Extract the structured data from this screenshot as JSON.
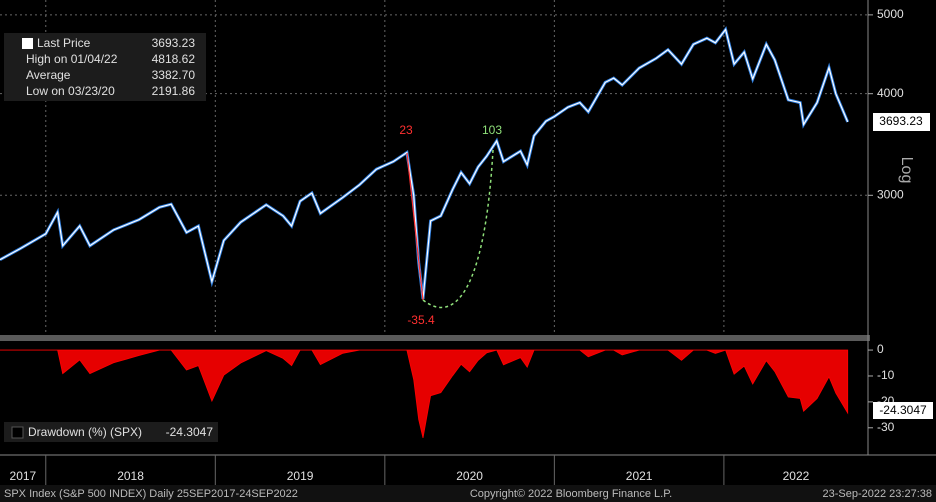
{
  "chart_data": [
    {
      "type": "line",
      "scale": "log",
      "x": [
        2017.73,
        2017.85,
        2018.0,
        2018.07,
        2018.1,
        2018.2,
        2018.26,
        2018.4,
        2018.55,
        2018.67,
        2018.74,
        2018.83,
        2018.9,
        2018.98,
        2019.05,
        2019.15,
        2019.3,
        2019.4,
        2019.45,
        2019.5,
        2019.57,
        2019.62,
        2019.75,
        2019.85,
        2019.95,
        2020.05,
        2020.13,
        2020.17,
        2020.2,
        2020.225,
        2020.27,
        2020.33,
        2020.4,
        2020.45,
        2020.5,
        2020.55,
        2020.6,
        2020.66,
        2020.7,
        2020.8,
        2020.84,
        2020.88,
        2020.95,
        2021.0,
        2021.08,
        2021.15,
        2021.2,
        2021.3,
        2021.35,
        2021.4,
        2021.5,
        2021.6,
        2021.67,
        2021.75,
        2021.82,
        2021.9,
        2021.95,
        2022.01,
        2022.06,
        2022.12,
        2022.17,
        2022.25,
        2022.3,
        2022.38,
        2022.45,
        2022.47,
        2022.55,
        2022.62,
        2022.66,
        2022.73
      ],
      "series": [
        {
          "name": "Last Price",
          "color": "#ffffff",
          "edge_color": "#2f7fe0",
          "values": [
            2500,
            2580,
            2690,
            2860,
            2600,
            2750,
            2600,
            2720,
            2800,
            2900,
            2925,
            2700,
            2750,
            2350,
            2640,
            2780,
            2920,
            2830,
            2750,
            2950,
            3020,
            2850,
            2980,
            3090,
            3230,
            3300,
            3386,
            3000,
            2480,
            2237,
            2790,
            2830,
            3050,
            3200,
            3100,
            3250,
            3350,
            3500,
            3300,
            3400,
            3270,
            3550,
            3700,
            3750,
            3850,
            3900,
            3800,
            4130,
            4180,
            4100,
            4300,
            4420,
            4530,
            4350,
            4600,
            4680,
            4620,
            4797,
            4350,
            4500,
            4170,
            4600,
            4400,
            3930,
            3900,
            3666,
            3900,
            4305,
            4000,
            3693.23
          ]
        }
      ],
      "stats": [
        {
          "name": "High on 01/04/22",
          "value": 4818.62
        },
        {
          "name": "Average",
          "value": 3382.7,
          "value_label": "3382.70"
        },
        {
          "name": "Low on 03/23/20",
          "value": 2191.86
        }
      ],
      "annotations": [
        {
          "text": "23",
          "color": "#ff3030"
        },
        {
          "text": "103",
          "color": "#8fe07a"
        },
        {
          "text": "-35.4",
          "color": "#ff3030"
        }
      ],
      "axis_label": "Log",
      "xlim": [
        2017.73,
        2022.85
      ],
      "xticks": [
        {
          "value": 2017,
          "label": "2017"
        },
        {
          "value": 2018,
          "label": "2018"
        },
        {
          "value": 2019,
          "label": "2019"
        },
        {
          "value": 2020,
          "label": "2020"
        },
        {
          "value": 2021,
          "label": "2021"
        },
        {
          "value": 2022,
          "label": "2022"
        }
      ],
      "ylim": [
        2020,
        5215
      ],
      "yticks": [
        3000,
        4000,
        5000
      ],
      "grid": true
    },
    {
      "type": "area",
      "x": [
        2017.73,
        2017.85,
        2018.0,
        2018.07,
        2018.1,
        2018.2,
        2018.26,
        2018.4,
        2018.55,
        2018.67,
        2018.74,
        2018.83,
        2018.9,
        2018.98,
        2019.05,
        2019.15,
        2019.3,
        2019.4,
        2019.45,
        2019.5,
        2019.57,
        2019.62,
        2019.75,
        2019.85,
        2019.95,
        2020.05,
        2020.13,
        2020.17,
        2020.2,
        2020.225,
        2020.27,
        2020.33,
        2020.4,
        2020.45,
        2020.5,
        2020.55,
        2020.6,
        2020.66,
        2020.7,
        2020.8,
        2020.84,
        2020.88,
        2020.95,
        2021.0,
        2021.08,
        2021.15,
        2021.2,
        2021.3,
        2021.35,
        2021.4,
        2021.5,
        2021.6,
        2021.67,
        2021.75,
        2021.82,
        2021.9,
        2021.95,
        2022.01,
        2022.06,
        2022.12,
        2022.17,
        2022.25,
        2022.3,
        2022.38,
        2022.45,
        2022.47,
        2022.55,
        2022.62,
        2022.66,
        2022.73
      ],
      "series": [
        {
          "name": "Drawdown (%) (SPX)",
          "color": "#ff0000",
          "values": [
            0,
            0,
            0,
            0,
            -9.1,
            -3.8,
            -9.1,
            -4.9,
            -2.1,
            0,
            0,
            -7.7,
            -6.0,
            -19.7,
            -9.7,
            -5.0,
            -0.2,
            -3.2,
            -6.0,
            0,
            0,
            -5.6,
            -1.3,
            0,
            0,
            0,
            0,
            -11.4,
            -26.8,
            -33.9,
            -17.6,
            -16.4,
            -9.9,
            -5.5,
            -8.4,
            -4.0,
            -1.1,
            0,
            -5.7,
            -2.9,
            -6.6,
            0,
            0,
            0,
            0,
            0,
            -2.6,
            0,
            0,
            -1.9,
            0,
            0,
            0,
            -4.0,
            0,
            0,
            -1.3,
            0,
            -9.3,
            -6.2,
            -13.1,
            -4.1,
            -8.3,
            -18.1,
            -18.7,
            -23.6,
            -18.7,
            -10.3,
            -16.6,
            -24.3047
          ]
        }
      ],
      "xlim": [
        2017.73,
        2022.85
      ],
      "xticks": [
        {
          "value": 2017,
          "label": "2017"
        },
        {
          "value": 2018,
          "label": "2018"
        },
        {
          "value": 2019,
          "label": "2019"
        },
        {
          "value": 2020,
          "label": "2020"
        },
        {
          "value": 2021,
          "label": "2021"
        },
        {
          "value": 2022,
          "label": "2022"
        }
      ],
      "ylim": [
        -40.5,
        3.5
      ],
      "yticks": [
        0,
        -10,
        -20,
        -30
      ]
    }
  ],
  "footer": {
    "left": "SPX Index (S&P 500 INDEX)  Daily 25SEP2017-24SEP2022",
    "center": "Copyright© 2022 Bloomberg Finance L.P.",
    "right": "23-Sep-2022 23:27:38"
  }
}
